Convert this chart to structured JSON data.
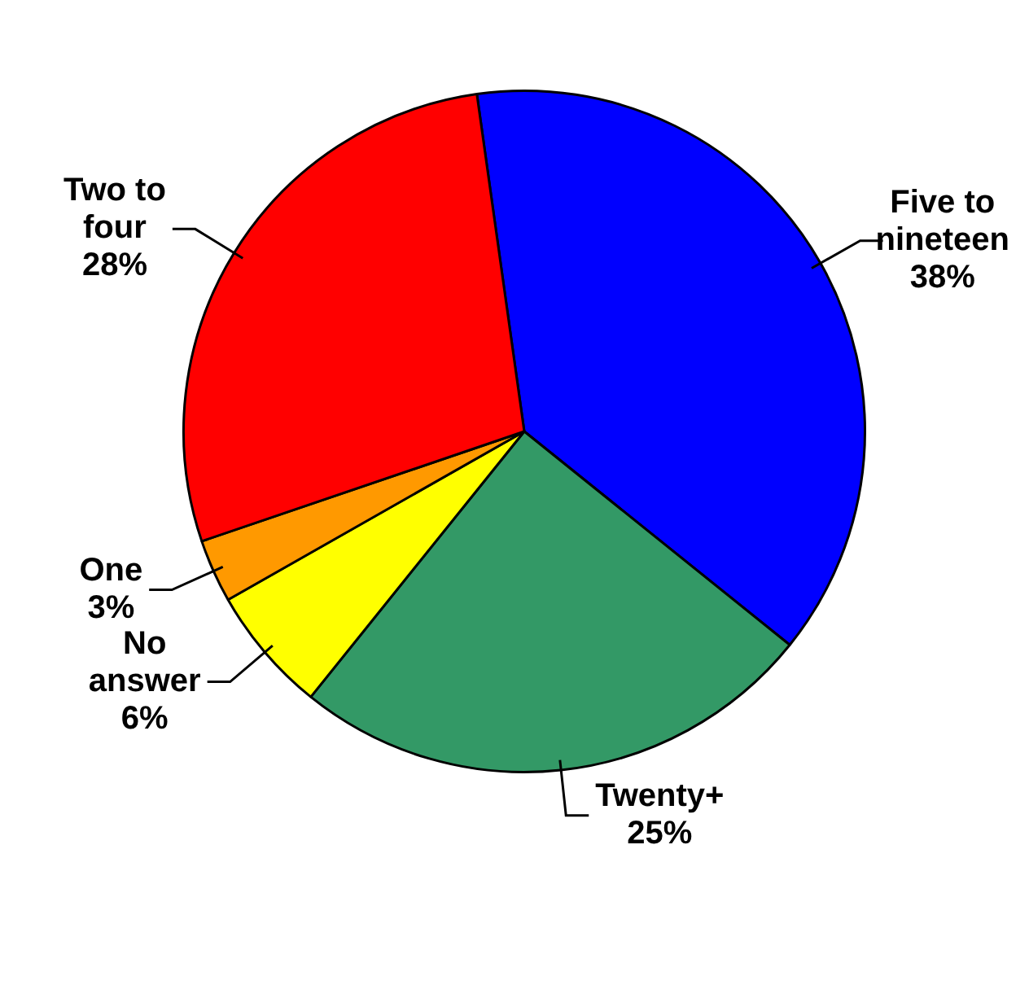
{
  "chart_data": {
    "type": "pie",
    "categories": [
      "Five to nineteen",
      "Twenty+",
      "No answer",
      "One",
      "Two to four"
    ],
    "values": [
      38,
      25,
      6,
      3,
      28
    ],
    "value_labels": [
      "38%",
      "25%",
      "6%",
      "3%",
      "28%"
    ],
    "colors": [
      "#0000ff",
      "#339966",
      "#ffff00",
      "#ff9900",
      "#ff0000"
    ],
    "legend": false
  }
}
